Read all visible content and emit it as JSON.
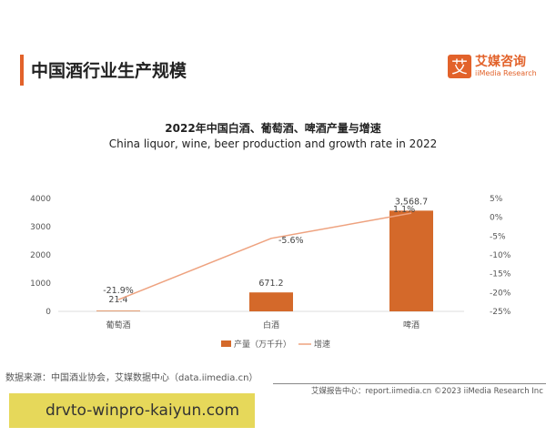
{
  "header": {
    "title": "中国酒行业生产规模",
    "logo_mark": "艾",
    "logo_cn": "艾媒咨询",
    "logo_en": "iiMedia Research"
  },
  "chart_data": {
    "type": "bar+line",
    "title": "2022年中国白酒、葡萄酒、啤酒产量与增速",
    "subtitle": "China liquor, wine, beer production and growth rate in 2022",
    "categories": [
      "葡萄酒",
      "白酒",
      "啤酒"
    ],
    "series": [
      {
        "name": "产量（万千升）",
        "type": "bar",
        "values": [
          21.4,
          671.2,
          3568.7
        ],
        "labels": [
          "21.4",
          "671.2",
          "3,568.7"
        ],
        "color": "#d4692a"
      },
      {
        "name": "增速",
        "type": "line",
        "axis": "right",
        "values": [
          -21.9,
          -5.6,
          1.1
        ],
        "labels": [
          "-21.9%",
          "-5.6%",
          "1.1%"
        ],
        "color": "#eea27f"
      }
    ],
    "ylim": [
      0,
      4000
    ],
    "yticks": [
      "0",
      "1000",
      "2000",
      "3000",
      "4000"
    ],
    "y2lim": [
      -25,
      5
    ],
    "y2ticks": [
      "-25%",
      "-20%",
      "-15%",
      "-10%",
      "-5%",
      "0%",
      "5%"
    ],
    "legend": "bottom",
    "grid": false
  },
  "source": "数据来源：中国酒业协会，艾媒数据中心（data.iimedia.cn）",
  "footer": "艾媒报告中心：report.iimedia.cn   ©2023  iiMedia Research  Inc",
  "watermark": "drvto-winpro-kaiyun.com"
}
